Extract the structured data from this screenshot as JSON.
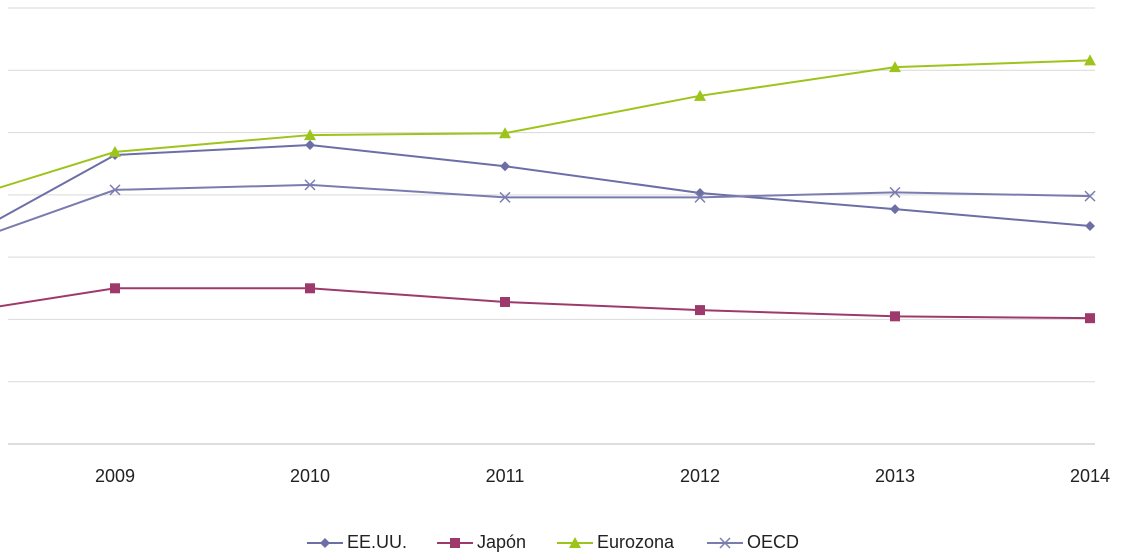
{
  "chart_data": {
    "type": "line",
    "categories": [
      null,
      "2009",
      "2010",
      "2011",
      "2012",
      "2013",
      "2014"
    ],
    "series": [
      {
        "name": "EE.UU.",
        "color": "#6b6fa6",
        "marker": "diamond",
        "values": [
          2.91,
          4.64,
          4.8,
          4.46,
          4.03,
          3.77,
          3.5
        ]
      },
      {
        "name": "Japón",
        "color": "#9e3a6b",
        "marker": "square",
        "values": [
          2.01,
          2.5,
          2.5,
          2.28,
          2.15,
          2.05,
          2.02
        ]
      },
      {
        "name": "Eurozona",
        "color": "#9dc41a",
        "marker": "triangle",
        "values": [
          3.72,
          4.69,
          4.96,
          4.99,
          5.59,
          6.05,
          6.16
        ]
      },
      {
        "name": "OECD",
        "color": "#7a7cb0",
        "marker": "x",
        "values": [
          2.97,
          4.08,
          4.16,
          3.96,
          3.96,
          4.04,
          3.98
        ]
      }
    ],
    "ylim": [
      0,
      7
    ],
    "yticks": [
      0,
      1,
      2,
      3,
      4,
      5,
      6,
      7
    ],
    "grid": true,
    "legend": "bottom"
  }
}
